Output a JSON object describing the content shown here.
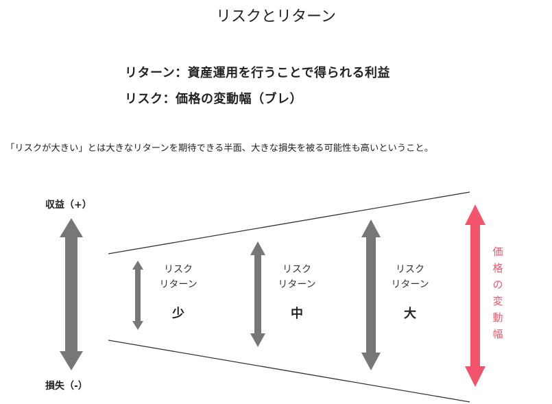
{
  "title": "リスクとリターン",
  "definitions": {
    "return": "リターン：資産運用を行うことで得られる利益",
    "risk": "リスク：価格の変動幅（ブレ）"
  },
  "explanation": "「リスクが大きい」とは大きなリターンを期待できる半面、大きな損失を被る可能性も高いということ。",
  "axis": {
    "gain": "収益（+）",
    "loss": "損失（-）"
  },
  "levels": [
    {
      "risk": "リスク",
      "return": "リターン",
      "size": "少"
    },
    {
      "risk": "リスク",
      "return": "リターン",
      "size": "中"
    },
    {
      "risk": "リスク",
      "return": "リターン",
      "size": "大"
    }
  ],
  "volatility_label": "価格の変動幅",
  "colors": {
    "gray_arrow": "#777777",
    "accent_arrow": "#f2546b",
    "text": "#222222"
  }
}
